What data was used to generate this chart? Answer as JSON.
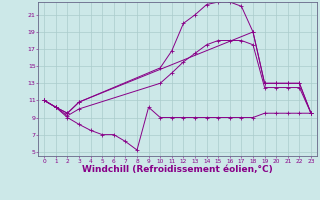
{
  "background_color": "#cce8e8",
  "grid_color": "#aacccc",
  "line_color": "#880088",
  "marker_color": "#880088",
  "xlabel": "Windchill (Refroidissement éolien,°C)",
  "xlabel_fontsize": 6.5,
  "ytick_labels": [
    "5",
    "7",
    "9",
    "11",
    "13",
    "15",
    "17",
    "19",
    "21"
  ],
  "ytick_values": [
    5,
    7,
    9,
    11,
    13,
    15,
    17,
    19,
    21
  ],
  "xtick_values": [
    0,
    1,
    2,
    3,
    4,
    5,
    6,
    7,
    8,
    9,
    10,
    11,
    12,
    13,
    14,
    15,
    16,
    17,
    18,
    19,
    20,
    21,
    22,
    23
  ],
  "xlim": [
    -0.5,
    23.5
  ],
  "ylim": [
    4.5,
    22.5
  ],
  "bottom_x": [
    0,
    1,
    2,
    3,
    4,
    5,
    6,
    7,
    8,
    9,
    10,
    11,
    12,
    13,
    14,
    15,
    16,
    17,
    18,
    19,
    20,
    21,
    22,
    23
  ],
  "bottom_y": [
    11.0,
    10.2,
    9.0,
    8.2,
    7.5,
    7.0,
    7.0,
    6.2,
    5.2,
    10.2,
    9.0,
    9.0,
    9.0,
    9.0,
    9.0,
    9.0,
    9.0,
    9.0,
    9.0,
    9.5,
    9.5,
    9.5,
    9.5,
    9.5
  ],
  "top_x": [
    0,
    1,
    2,
    3,
    10,
    11,
    12,
    13,
    14,
    15,
    16,
    17,
    18,
    19,
    20,
    21,
    22,
    23
  ],
  "top_y": [
    11.0,
    10.2,
    9.5,
    10.8,
    14.8,
    16.8,
    20.0,
    21.0,
    22.2,
    22.5,
    22.5,
    22.0,
    19.0,
    13.0,
    13.0,
    13.0,
    13.0,
    9.5
  ],
  "mid1_x": [
    0,
    1,
    2,
    3,
    18,
    19,
    20,
    21,
    22,
    23
  ],
  "mid1_y": [
    11.0,
    10.2,
    9.5,
    10.8,
    19.0,
    13.0,
    13.0,
    13.0,
    13.0,
    9.5
  ],
  "mid2_x": [
    0,
    1,
    2,
    3,
    10,
    11,
    12,
    13,
    14,
    15,
    16,
    17,
    18,
    19,
    20,
    21,
    22,
    23
  ],
  "mid2_y": [
    11.0,
    10.2,
    9.2,
    10.0,
    13.0,
    14.2,
    15.5,
    16.5,
    17.5,
    18.0,
    18.0,
    18.0,
    17.5,
    12.5,
    12.5,
    12.5,
    12.5,
    9.5
  ],
  "figwidth": 3.2,
  "figheight": 2.0,
  "dpi": 100
}
